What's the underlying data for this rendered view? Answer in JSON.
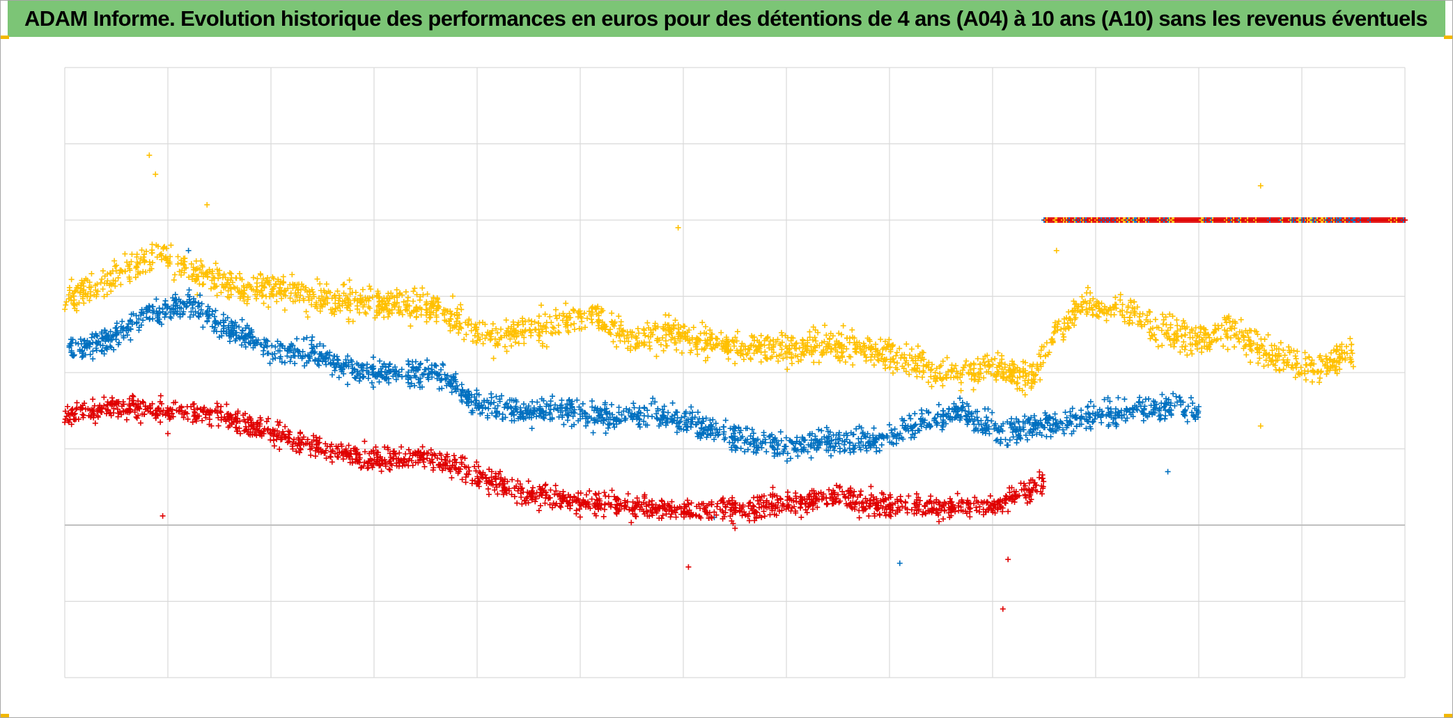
{
  "title": "ADAM Informe. Evolution historique des performances en euros pour des détentions de 4 ans (A04) à 10 ans (A10) sans les revenus éventuels",
  "colors": {
    "header_bg": "#7cc576",
    "grid": "#d9d9d9",
    "zero_line": "#bfbfbf",
    "handle": "#f2b800"
  },
  "chart_data": {
    "type": "scatter",
    "title": "ADAM Informe. Evolution historique des performances en euros pour des détentions de 4 ans (A04) à 10 ans (A10) sans les revenus éventuels",
    "xlabel": "",
    "ylabel": "",
    "xlim": [
      0,
      13
    ],
    "ylim": [
      -2,
      6
    ],
    "x_gridlines": [
      0,
      1,
      2,
      3,
      4,
      5,
      6,
      7,
      8,
      9,
      10,
      11,
      12,
      13
    ],
    "y_gridlines": [
      -2,
      -1,
      0,
      1,
      2,
      3,
      4,
      5,
      6
    ],
    "legend": "none",
    "marker": "+",
    "series": [
      {
        "name": "yellow",
        "color": "#ffc000",
        "anchors_x": [
          0,
          0.5,
          0.9,
          1.3,
          1.7,
          2.1,
          2.6,
          3.1,
          3.6,
          4.1,
          4.6,
          5.1,
          5.5,
          6.0,
          6.5,
          7.0,
          7.5,
          8.0,
          8.5,
          9.0,
          9.4,
          9.6,
          9.9,
          10.3,
          10.6,
          11.0,
          11.3,
          11.6,
          11.8,
          12.1,
          12.5
        ],
        "anchors_y": [
          2.95,
          3.25,
          3.55,
          3.3,
          3.1,
          3.1,
          2.95,
          2.9,
          2.85,
          2.45,
          2.6,
          2.75,
          2.45,
          2.5,
          2.3,
          2.3,
          2.35,
          2.25,
          2.0,
          2.05,
          1.95,
          2.5,
          2.9,
          2.8,
          2.6,
          2.4,
          2.6,
          2.3,
          2.2,
          2.05,
          2.25
        ],
        "x_range": [
          0,
          12.5
        ],
        "noise": 0.2,
        "outliers": [
          [
            0.82,
            4.85
          ],
          [
            0.88,
            4.6
          ],
          [
            1.38,
            4.2
          ],
          [
            5.95,
            3.9
          ],
          [
            11.6,
            4.45
          ],
          [
            11.6,
            1.3
          ],
          [
            9.62,
            3.6
          ]
        ]
      },
      {
        "name": "blue",
        "color": "#0070c0",
        "anchors_x": [
          0,
          0.4,
          0.8,
          1.2,
          1.6,
          2.0,
          2.4,
          2.8,
          3.2,
          3.6,
          4.0,
          4.4,
          4.9,
          5.3,
          5.7,
          6.1,
          6.5,
          7.0,
          7.5,
          7.9,
          8.3,
          8.7,
          9.1,
          9.5,
          9.9,
          10.3,
          10.7,
          11.0
        ],
        "anchors_y": [
          2.3,
          2.4,
          2.75,
          2.9,
          2.55,
          2.3,
          2.25,
          2.05,
          2.0,
          2.0,
          1.6,
          1.5,
          1.5,
          1.4,
          1.45,
          1.35,
          1.15,
          1.05,
          1.1,
          1.1,
          1.35,
          1.5,
          1.2,
          1.3,
          1.4,
          1.5,
          1.55,
          1.5
        ],
        "x_range": [
          0,
          11.0
        ],
        "noise": 0.16,
        "outliers": [
          [
            8.1,
            -0.5
          ],
          [
            10.7,
            0.7
          ],
          [
            6.3,
            0.1
          ],
          [
            1.2,
            3.6
          ]
        ]
      },
      {
        "name": "red",
        "color": "#e00000",
        "anchors_x": [
          0,
          0.5,
          1.0,
          1.5,
          2.0,
          2.5,
          3.0,
          3.5,
          4.0,
          4.5,
          5.0,
          5.5,
          6.0,
          6.5,
          7.0,
          7.5,
          8.0,
          8.5,
          9.0,
          9.5
        ],
        "anchors_y": [
          1.45,
          1.55,
          1.5,
          1.45,
          1.2,
          1.0,
          0.85,
          0.9,
          0.65,
          0.4,
          0.3,
          0.25,
          0.2,
          0.2,
          0.3,
          0.35,
          0.25,
          0.25,
          0.25,
          0.55
        ],
        "x_range": [
          0,
          9.5
        ],
        "noise": 0.15,
        "outliers": [
          [
            0.95,
            0.12
          ],
          [
            6.05,
            -0.55
          ],
          [
            9.1,
            -1.1
          ],
          [
            9.15,
            -0.45
          ],
          [
            1.0,
            1.2
          ]
        ]
      },
      {
        "name": "flat-level",
        "color": "#e00000",
        "y": 4.0,
        "x_range": [
          9.5,
          13.0
        ],
        "marker_colors": [
          "#e00000",
          "#0070c0",
          "#ffc000"
        ]
      }
    ]
  }
}
